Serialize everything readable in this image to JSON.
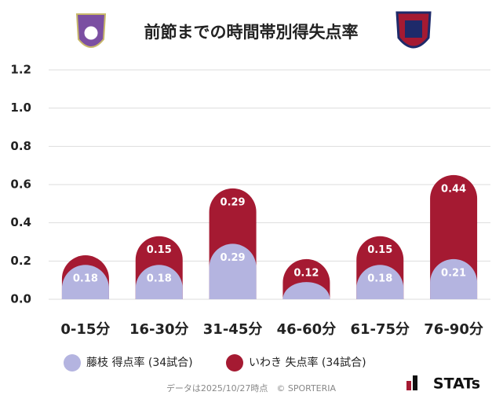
{
  "chart_data": {
    "type": "stacked-bar",
    "title": "前節までの時間帯別得失点率",
    "categories": [
      "0-15分",
      "16-30分",
      "31-45分",
      "46-60分",
      "61-75分",
      "76-90分"
    ],
    "series": [
      {
        "name": "藤枝 得点率 (34試合)",
        "color": "#b4b4e0",
        "values": [
          0.18,
          0.18,
          0.29,
          0.09,
          0.18,
          0.21
        ],
        "value_labels": [
          "0.18",
          "0.18",
          "0.29",
          null,
          "0.18",
          "0.21"
        ]
      },
      {
        "name": "いわき 失点率 (34試合)",
        "color": "#a51a32",
        "values": [
          0.05,
          0.15,
          0.29,
          0.12,
          0.15,
          0.44
        ],
        "value_labels": [
          null,
          "0.15",
          "0.29",
          "0.12",
          "0.15",
          "0.44"
        ]
      }
    ],
    "ylim": [
      0,
      1.2
    ],
    "yticks": [
      {
        "value": 0,
        "label": "0.0"
      },
      0.2,
      0.4,
      0.6,
      0.8,
      {
        "value": 1,
        "label": "1.0"
      },
      1.2
    ],
    "grid": true,
    "footnote": "データは2025/10/27時点　© SPORTERIA",
    "brand": "STATs"
  }
}
